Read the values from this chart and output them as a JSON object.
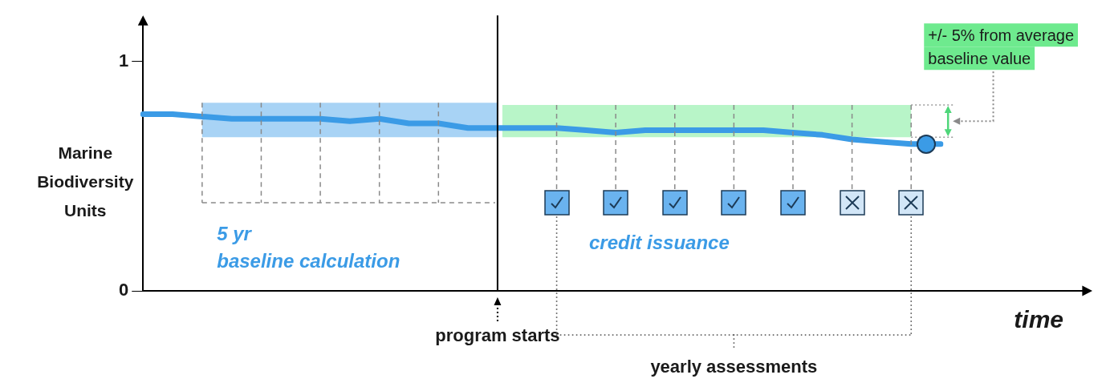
{
  "chart_data": {
    "type": "line",
    "xlabel": "time",
    "ylabel": "Marine Biodiversity Units",
    "categories": [
      null,
      null,
      null,
      null,
      null,
      null,
      null,
      null,
      null,
      null,
      null,
      null,
      "program starts",
      null,
      null,
      null,
      null,
      null,
      null,
      null,
      null,
      null,
      null,
      null,
      null,
      null,
      null,
      null
    ],
    "ylim": [
      0,
      1.18
    ],
    "yticks": [
      0,
      1
    ],
    "grid": false,
    "legend": false,
    "series": [
      {
        "color": "#3b9be6",
        "values": [
          0.77,
          0.77,
          0.76,
          0.75,
          0.75,
          0.75,
          0.75,
          0.74,
          0.75,
          0.73,
          0.73,
          0.71,
          0.71,
          0.71,
          0.71,
          0.7,
          0.69,
          0.7,
          0.7,
          0.7,
          0.7,
          0.7,
          0.69,
          0.68,
          0.66,
          0.65,
          0.64,
          0.64
        ]
      }
    ],
    "bands": [
      {
        "axis": "y",
        "from": 0.67,
        "to": 0.82,
        "color": "#a8d3f5"
      },
      {
        "axis": "y",
        "from": 0.67,
        "to": 0.81,
        "color": "#b8f5c8"
      }
    ],
    "ref_lines": [
      {
        "axis": "x",
        "value": "program starts",
        "color": "#000000"
      }
    ],
    "annotations": [
      "5 yr",
      "baseline calculation",
      "credit issuance",
      "+/- 5% from average baseline value",
      "yearly assessments"
    ]
  }
}
